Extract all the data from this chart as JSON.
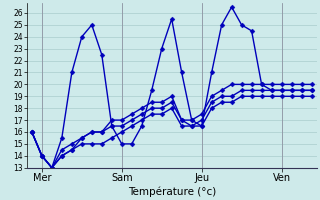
{
  "background_color": "#ceeaea",
  "grid_color": "#aacccc",
  "line_color": "#0000bb",
  "marker": "D",
  "marker_size": 2.5,
  "linewidth": 1.0,
  "xlabel": "Température (°c)",
  "xlabel_fontsize": 7.5,
  "ylim": [
    13,
    26.8
  ],
  "yticks": [
    13,
    14,
    15,
    16,
    17,
    18,
    19,
    20,
    21,
    22,
    23,
    24,
    25,
    26
  ],
  "ytick_fontsize": 5.5,
  "xtick_fontsize": 7,
  "xtick_labels": [
    "Mer",
    "Sam",
    "Jeu",
    "Ven"
  ],
  "xtick_positions": [
    1,
    9,
    17,
    25
  ],
  "vline_positions": [
    1,
    9,
    17,
    25
  ],
  "n_points": 29,
  "series": [
    [
      16,
      14,
      13,
      15.5,
      21,
      24,
      25,
      22.5,
      16.5,
      15,
      15,
      16.5,
      19.5,
      23,
      25.5,
      21,
      17,
      16.5,
      21,
      25,
      26.5,
      25,
      24.5,
      20,
      19.5,
      19.5,
      19.5,
      19.5,
      19.5
    ],
    [
      16,
      14,
      13,
      14,
      14.5,
      15.5,
      16,
      16,
      16.5,
      16.5,
      17,
      17.5,
      18,
      18,
      18.5,
      17,
      16.5,
      17,
      18.5,
      19,
      19,
      19.5,
      19.5,
      19.5,
      19.5,
      19.5,
      19.5,
      19.5,
      19.5
    ],
    [
      16,
      14,
      13,
      14,
      14.5,
      15,
      15,
      15,
      15.5,
      16,
      16.5,
      17,
      17.5,
      17.5,
      18,
      16.5,
      16.5,
      16.5,
      18,
      18.5,
      18.5,
      19,
      19,
      19,
      19,
      19,
      19,
      19,
      19
    ],
    [
      16,
      14,
      13,
      14.5,
      15,
      15.5,
      16,
      16,
      17,
      17,
      17.5,
      18,
      18.5,
      18.5,
      19,
      17,
      17,
      17.5,
      19,
      19.5,
      20,
      20,
      20,
      20,
      20,
      20,
      20,
      20,
      20
    ]
  ]
}
